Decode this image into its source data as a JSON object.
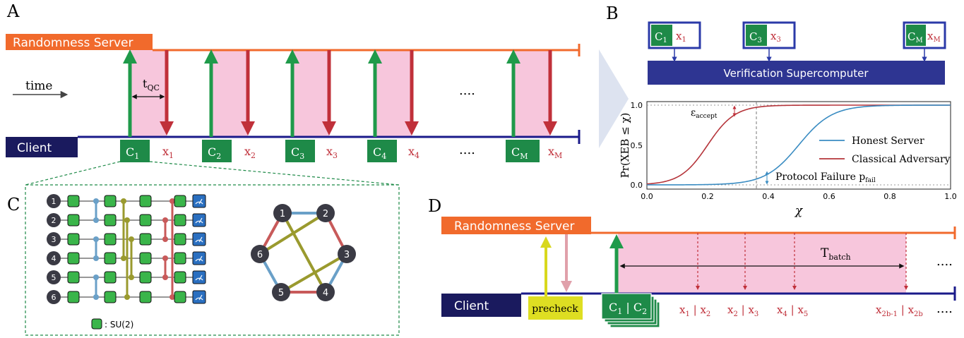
{
  "panels": {
    "a": "A",
    "b": "B",
    "c": "C",
    "d": "D"
  },
  "panel_a": {
    "server_label": "Randomness Server",
    "client_label": "Client",
    "time_label": "time",
    "tqc_main": "t",
    "tqc_sub": "QC",
    "ellipsis_top": "....",
    "ellipsis_bottom": "....",
    "challenges": [
      {
        "main": "C",
        "sub": "1"
      },
      {
        "main": "C",
        "sub": "2"
      },
      {
        "main": "C",
        "sub": "3"
      },
      {
        "main": "C",
        "sub": "4"
      },
      {
        "main": "C",
        "sub": "M"
      }
    ],
    "responses": [
      {
        "main": "x",
        "sub": "1"
      },
      {
        "main": "x",
        "sub": "2"
      },
      {
        "main": "x",
        "sub": "3"
      },
      {
        "main": "x",
        "sub": "4"
      },
      {
        "main": "x",
        "sub": "M"
      }
    ]
  },
  "panel_b": {
    "verifier_label": "Verification Supercomputer",
    "pairs": [
      {
        "c_main": "C",
        "c_sub": "1",
        "x_main": "x",
        "x_sub": "1"
      },
      {
        "c_main": "C",
        "c_sub": "3",
        "x_main": "x",
        "x_sub": "3"
      },
      {
        "c_main": "C",
        "c_sub": "M",
        "x_main": "x",
        "x_sub": "M"
      }
    ],
    "legend": [
      "Honest Server",
      "Classical Adversary"
    ],
    "ylabel": "Pr(XEB ≤ χ)",
    "xlabel": "χ",
    "xticks": [
      "0.0",
      "0.2",
      "0.4",
      "0.6",
      "0.8",
      "1.0"
    ],
    "yticks": [
      "0.0",
      "0.5",
      "1.0"
    ],
    "eps_main": "ε",
    "eps_sub": "accept",
    "pfail_text": "Protocol Failure p",
    "pfail_sub": "fail",
    "colors": {
      "honest": "#3a8cc2",
      "adversary": "#b5343a"
    }
  },
  "panel_c": {
    "qubits": [
      "1",
      "2",
      "3",
      "4",
      "5",
      "6"
    ],
    "graph_nodes": [
      "1",
      "2",
      "3",
      "4",
      "5",
      "6"
    ],
    "su2_label": ": SU(2)"
  },
  "panel_d": {
    "server_label": "Randomness Server",
    "client_label": "Client",
    "precheck_label": "precheck",
    "challenge": "C | C",
    "c1_main": "C",
    "c1_sub": "1",
    "c2_main": "C",
    "c2_sub": "2",
    "tbatch_main": "T",
    "tbatch_sub": "batch",
    "ellipsis_top": "....",
    "ellipsis_bottom": "....",
    "outputs": [
      {
        "a": "x",
        "as": "1",
        "b": "x",
        "bs": "2"
      },
      {
        "a": "x",
        "as": "2",
        "b": "x",
        "bs": "3"
      },
      {
        "a": "x",
        "as": "4",
        "b": "x",
        "bs": "5"
      },
      {
        "a": "x",
        "as": "2b-1",
        "b": "x",
        "bs": "2b"
      }
    ]
  }
}
